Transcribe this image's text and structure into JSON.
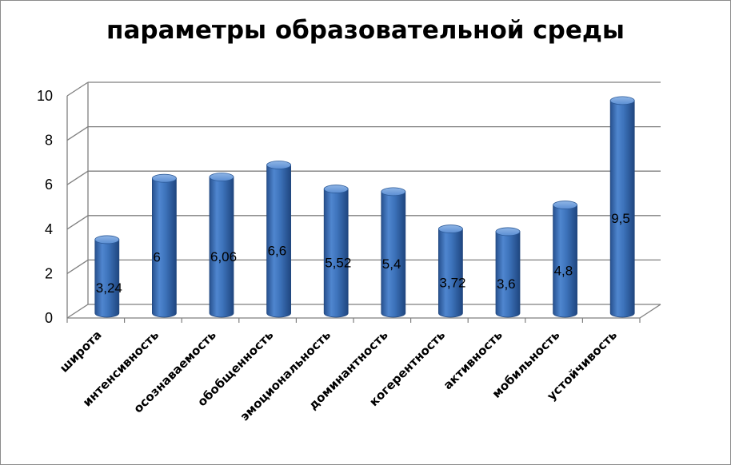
{
  "chart_data": {
    "type": "bar",
    "title": "параметры образовательной среды",
    "categories": [
      "широта",
      "интенсивность",
      "осознаваемость",
      "обобщенность",
      "эмоциональность",
      "доминантность",
      "когерентность",
      "активность",
      "мобильность",
      "устойчивость"
    ],
    "values": [
      3.24,
      6,
      6.06,
      6.6,
      5.52,
      5.4,
      3.72,
      3.6,
      4.8,
      9.5
    ],
    "data_labels": [
      "3,24",
      "6",
      "6,06",
      "6,6",
      "5,52",
      "5,4",
      "3,72",
      "3,6",
      "4,8",
      "9,5"
    ],
    "y_ticks": [
      "0",
      "2",
      "4",
      "6",
      "8",
      "10"
    ],
    "ylim": [
      0,
      10
    ],
    "xlabel": "",
    "ylabel": "",
    "grid": true,
    "legend": "none",
    "bar_color": "#3a6fb5"
  }
}
